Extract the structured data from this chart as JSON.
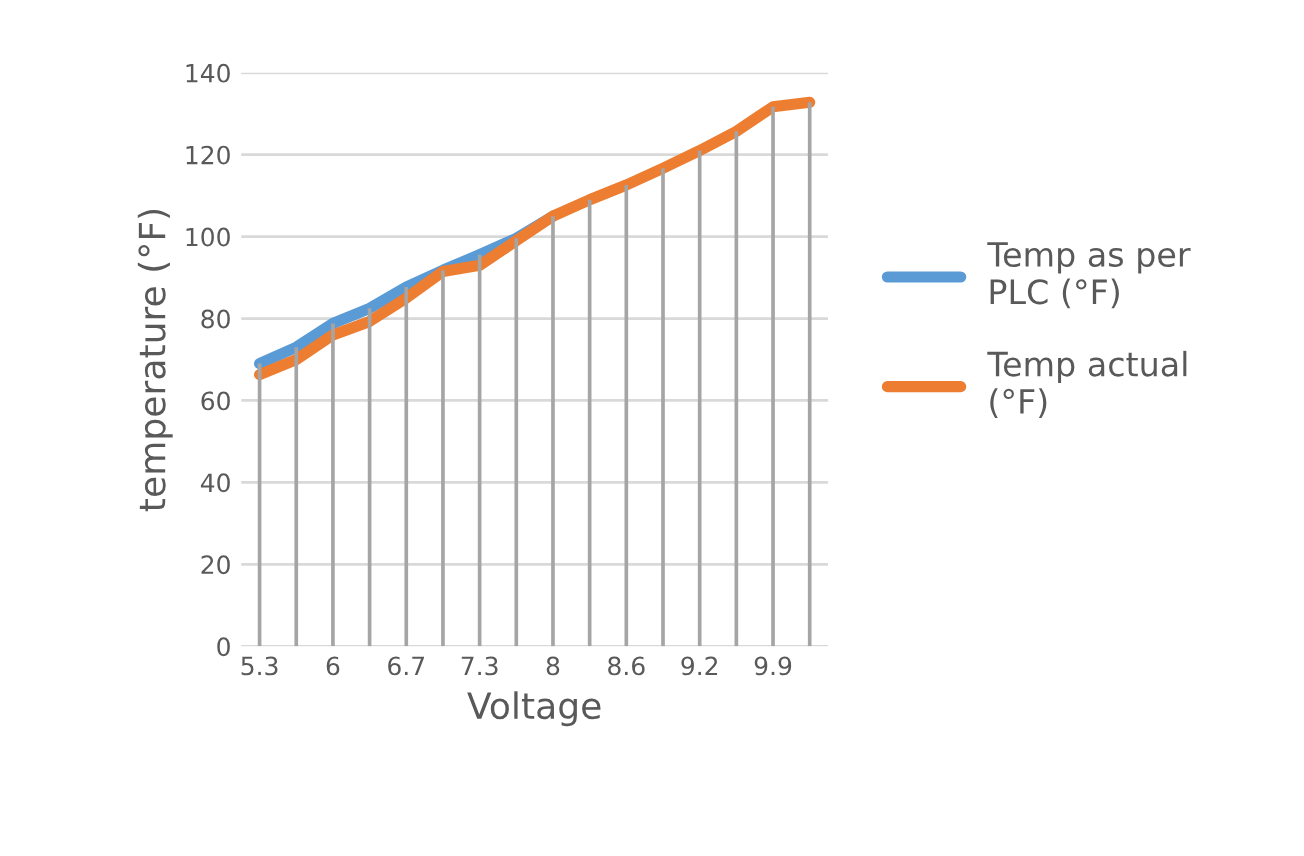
{
  "chart_data": {
    "type": "line",
    "xlabel": "Voltage",
    "ylabel": "temperature (°F)",
    "categories": [
      "5.3",
      null,
      "6",
      null,
      "6.7",
      null,
      "7.3",
      null,
      "8",
      null,
      "8.6",
      null,
      "9.2",
      null,
      "9.9",
      null
    ],
    "series": [
      {
        "type": "bar",
        "color": "#a5a5a5",
        "values": [
          69,
          73,
          78.8,
          82.5,
          87.7,
          91.8,
          95.6,
          99.6,
          105,
          109,
          112.6,
          116.7,
          121,
          125.7,
          131.7,
          132.8
        ]
      },
      {
        "name": "Temp as per PLC (°F)",
        "color": "#5b9bd5",
        "values": [
          69,
          73,
          78.8,
          82.5,
          87.7,
          91.8,
          95.6,
          99.6,
          105,
          null,
          null,
          null,
          null,
          null,
          null,
          null
        ]
      },
      {
        "name": "Temp actual (°F)",
        "color": "#ed7d31",
        "values": [
          66.3,
          70,
          76,
          79.3,
          85,
          91.5,
          93,
          99,
          105,
          109,
          112.6,
          116.7,
          121,
          125.7,
          131.7,
          132.8
        ]
      }
    ],
    "ylim": [
      0,
      140
    ],
    "yticks": [
      0,
      20,
      40,
      60,
      80,
      100,
      120,
      140
    ],
    "grid": "y",
    "legend": "right",
    "marker": "none",
    "line_style": "solid"
  }
}
